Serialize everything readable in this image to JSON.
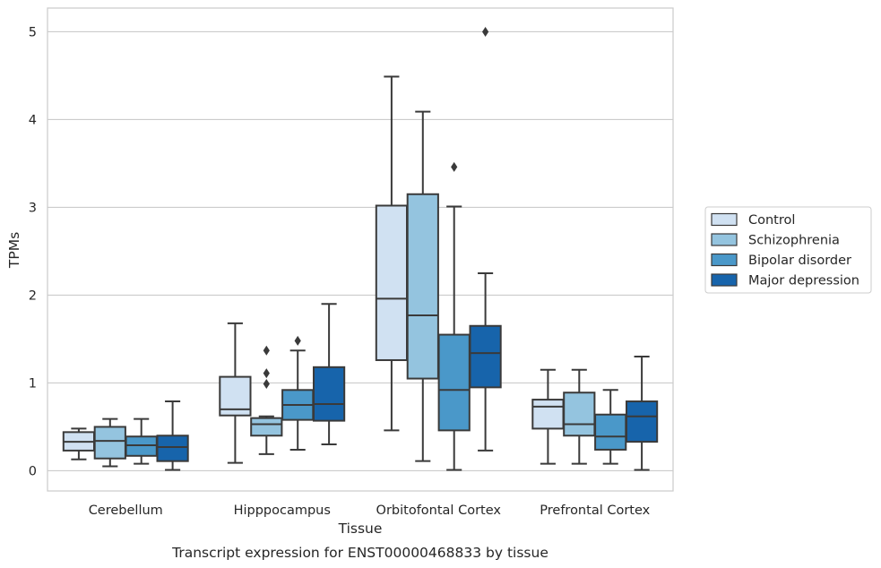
{
  "chart_data": {
    "type": "boxplot",
    "xlabel": "Tissue",
    "ylabel": "TPMs",
    "caption": "Transcript expression for ENST00000468833 by tissue",
    "categories": [
      "Cerebellum",
      "Hipppocampus",
      "Orbitofontal Cortex",
      "Prefrontal Cortex"
    ],
    "ylim": [
      -0.23,
      5.27
    ],
    "yticks": [
      0,
      1,
      2,
      3,
      4,
      5
    ],
    "grid": "horizontal",
    "legend_position": "right",
    "series": [
      {
        "name": "Control",
        "color": "#d0e1f2",
        "boxes": [
          {
            "whislo": 0.13,
            "q1": 0.23,
            "med": 0.33,
            "q3": 0.44,
            "whishi": 0.48,
            "fliers": []
          },
          {
            "whislo": 0.09,
            "q1": 0.63,
            "med": 0.7,
            "q3": 1.07,
            "whishi": 1.68,
            "fliers": []
          },
          {
            "whislo": 0.46,
            "q1": 1.26,
            "med": 1.96,
            "q3": 3.02,
            "whishi": 4.49,
            "fliers": []
          },
          {
            "whislo": 0.08,
            "q1": 0.48,
            "med": 0.73,
            "q3": 0.81,
            "whishi": 1.15,
            "fliers": []
          }
        ]
      },
      {
        "name": "Schizophrenia",
        "color": "#94c4df",
        "boxes": [
          {
            "whislo": 0.05,
            "q1": 0.14,
            "med": 0.34,
            "q3": 0.5,
            "whishi": 0.59,
            "fliers": []
          },
          {
            "whislo": 0.19,
            "q1": 0.4,
            "med": 0.53,
            "q3": 0.6,
            "whishi": 0.62,
            "fliers": [
              1.37,
              1.11,
              0.99
            ]
          },
          {
            "whislo": 0.11,
            "q1": 1.05,
            "med": 1.77,
            "q3": 3.15,
            "whishi": 4.09,
            "fliers": []
          },
          {
            "whislo": 0.08,
            "q1": 0.4,
            "med": 0.53,
            "q3": 0.89,
            "whishi": 1.15,
            "fliers": []
          }
        ]
      },
      {
        "name": "Bipolar disorder",
        "color": "#4a98c9",
        "boxes": [
          {
            "whislo": 0.08,
            "q1": 0.17,
            "med": 0.29,
            "q3": 0.39,
            "whishi": 0.59,
            "fliers": []
          },
          {
            "whislo": 0.24,
            "q1": 0.58,
            "med": 0.75,
            "q3": 0.92,
            "whishi": 1.37,
            "fliers": [
              1.48
            ]
          },
          {
            "whislo": 0.01,
            "q1": 0.46,
            "med": 0.92,
            "q3": 1.55,
            "whishi": 3.01,
            "fliers": [
              3.46
            ]
          },
          {
            "whislo": 0.08,
            "q1": 0.24,
            "med": 0.39,
            "q3": 0.64,
            "whishi": 0.92,
            "fliers": []
          }
        ]
      },
      {
        "name": "Major depression",
        "color": "#1764ab",
        "boxes": [
          {
            "whislo": 0.01,
            "q1": 0.11,
            "med": 0.27,
            "q3": 0.4,
            "whishi": 0.79,
            "fliers": []
          },
          {
            "whislo": 0.3,
            "q1": 0.57,
            "med": 0.76,
            "q3": 1.18,
            "whishi": 1.9,
            "fliers": []
          },
          {
            "whislo": 0.23,
            "q1": 0.95,
            "med": 1.34,
            "q3": 1.65,
            "whishi": 2.25,
            "fliers": [
              5.0
            ]
          },
          {
            "whislo": 0.01,
            "q1": 0.33,
            "med": 0.62,
            "q3": 0.79,
            "whishi": 1.3,
            "fliers": []
          }
        ]
      }
    ]
  }
}
